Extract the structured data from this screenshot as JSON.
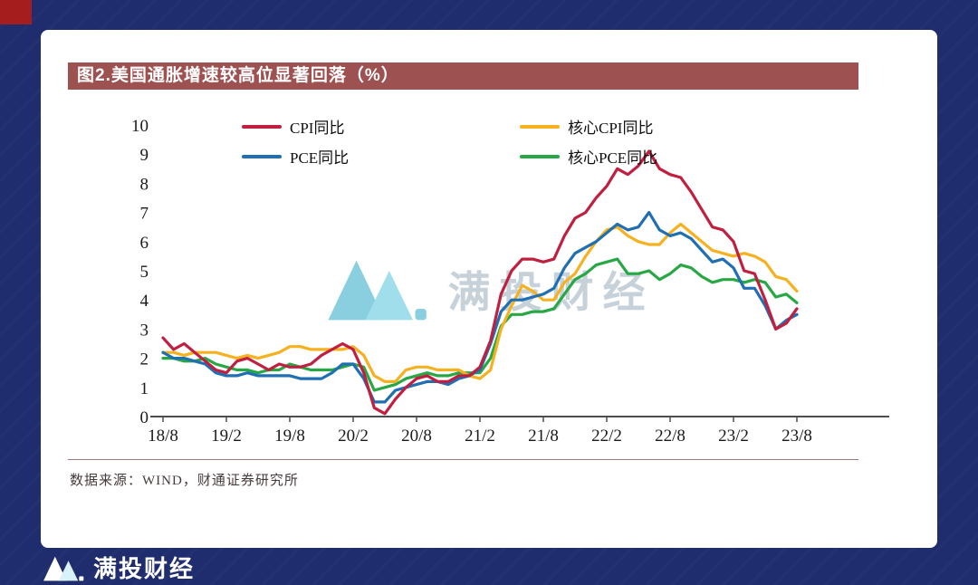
{
  "page": {
    "background_color": "#1f2c6d",
    "corner_accent_color": "#a61d1d"
  },
  "figure": {
    "title": "图2.美国通胀增速较高位显著回落（%）",
    "title_bar_color": "#9e5151",
    "source": "数据来源：WIND，财通证券研究所"
  },
  "watermark": {
    "logo": "mantou-m-logo",
    "text": "满投财经"
  },
  "footer": {
    "brand": "满投财经"
  },
  "chart_data": {
    "type": "line",
    "title": "图2.美国通胀增速较高位显著回落（%）",
    "xlabel": "",
    "ylabel": "",
    "ylim": [
      0,
      10
    ],
    "y_ticks": [
      0,
      1,
      2,
      3,
      4,
      5,
      6,
      7,
      8,
      9,
      10
    ],
    "grid": false,
    "legend_position": "top",
    "x_tick_labels": [
      "18/8",
      "19/2",
      "19/8",
      "20/2",
      "20/8",
      "21/2",
      "21/8",
      "22/2",
      "22/8",
      "23/2",
      "23/8"
    ],
    "x_tick_every": 6,
    "x_months": "monthly from 2018/8 to 2023/8, 61 points",
    "series": [
      {
        "name": "CPI同比",
        "color": "#c01f3f",
        "values": [
          2.7,
          2.3,
          2.5,
          2.2,
          1.9,
          1.6,
          1.5,
          1.9,
          2.0,
          1.8,
          1.6,
          1.8,
          1.7,
          1.7,
          1.8,
          2.1,
          2.3,
          2.5,
          2.3,
          1.5,
          0.3,
          0.1,
          0.6,
          1.0,
          1.3,
          1.4,
          1.2,
          1.2,
          1.4,
          1.4,
          1.7,
          2.6,
          4.2,
          5.0,
          5.4,
          5.4,
          5.3,
          5.4,
          6.2,
          6.8,
          7.0,
          7.5,
          7.9,
          8.5,
          8.3,
          8.6,
          9.1,
          8.5,
          8.3,
          8.2,
          7.7,
          7.1,
          6.5,
          6.4,
          6.0,
          5.0,
          4.9,
          4.0,
          3.0,
          3.2,
          3.7
        ]
      },
      {
        "name": "核心CPI同比",
        "color": "#f5b120",
        "values": [
          2.2,
          2.2,
          2.1,
          2.2,
          2.2,
          2.2,
          2.1,
          2.0,
          2.1,
          2.0,
          2.1,
          2.2,
          2.4,
          2.4,
          2.3,
          2.3,
          2.3,
          2.3,
          2.4,
          2.1,
          1.4,
          1.2,
          1.2,
          1.6,
          1.7,
          1.7,
          1.6,
          1.6,
          1.6,
          1.4,
          1.3,
          1.6,
          3.0,
          3.8,
          4.5,
          4.3,
          4.0,
          4.0,
          4.6,
          4.9,
          5.5,
          6.0,
          6.4,
          6.5,
          6.2,
          6.0,
          5.9,
          5.9,
          6.3,
          6.6,
          6.3,
          6.0,
          5.7,
          5.6,
          5.5,
          5.6,
          5.5,
          5.3,
          4.8,
          4.7,
          4.3
        ]
      },
      {
        "name": "PCE同比",
        "color": "#1f6fb2",
        "values": [
          2.2,
          2.0,
          2.0,
          1.9,
          1.8,
          1.5,
          1.4,
          1.4,
          1.5,
          1.4,
          1.4,
          1.4,
          1.4,
          1.3,
          1.3,
          1.3,
          1.5,
          1.8,
          1.8,
          1.3,
          0.5,
          0.5,
          0.9,
          1.0,
          1.1,
          1.2,
          1.2,
          1.1,
          1.3,
          1.4,
          1.6,
          2.5,
          3.6,
          4.0,
          4.0,
          4.1,
          4.2,
          4.4,
          5.1,
          5.6,
          5.8,
          6.0,
          6.3,
          6.6,
          6.4,
          6.5,
          7.0,
          6.4,
          6.2,
          6.3,
          6.1,
          5.7,
          5.3,
          5.4,
          5.1,
          4.4,
          4.4,
          3.8,
          3.0,
          3.3,
          3.5
        ]
      },
      {
        "name": "核心PCE同比",
        "color": "#27a844",
        "values": [
          2.0,
          2.0,
          1.9,
          1.9,
          2.0,
          1.8,
          1.7,
          1.6,
          1.6,
          1.5,
          1.6,
          1.6,
          1.8,
          1.7,
          1.6,
          1.6,
          1.6,
          1.7,
          1.8,
          1.7,
          0.9,
          1.0,
          1.1,
          1.3,
          1.4,
          1.5,
          1.4,
          1.4,
          1.5,
          1.5,
          1.5,
          2.0,
          3.1,
          3.5,
          3.5,
          3.6,
          3.6,
          3.7,
          4.2,
          4.7,
          4.9,
          5.2,
          5.3,
          5.4,
          4.9,
          4.9,
          5.0,
          4.7,
          4.9,
          5.2,
          5.1,
          4.8,
          4.6,
          4.7,
          4.7,
          4.6,
          4.7,
          4.6,
          4.1,
          4.2,
          3.9
        ]
      }
    ]
  }
}
